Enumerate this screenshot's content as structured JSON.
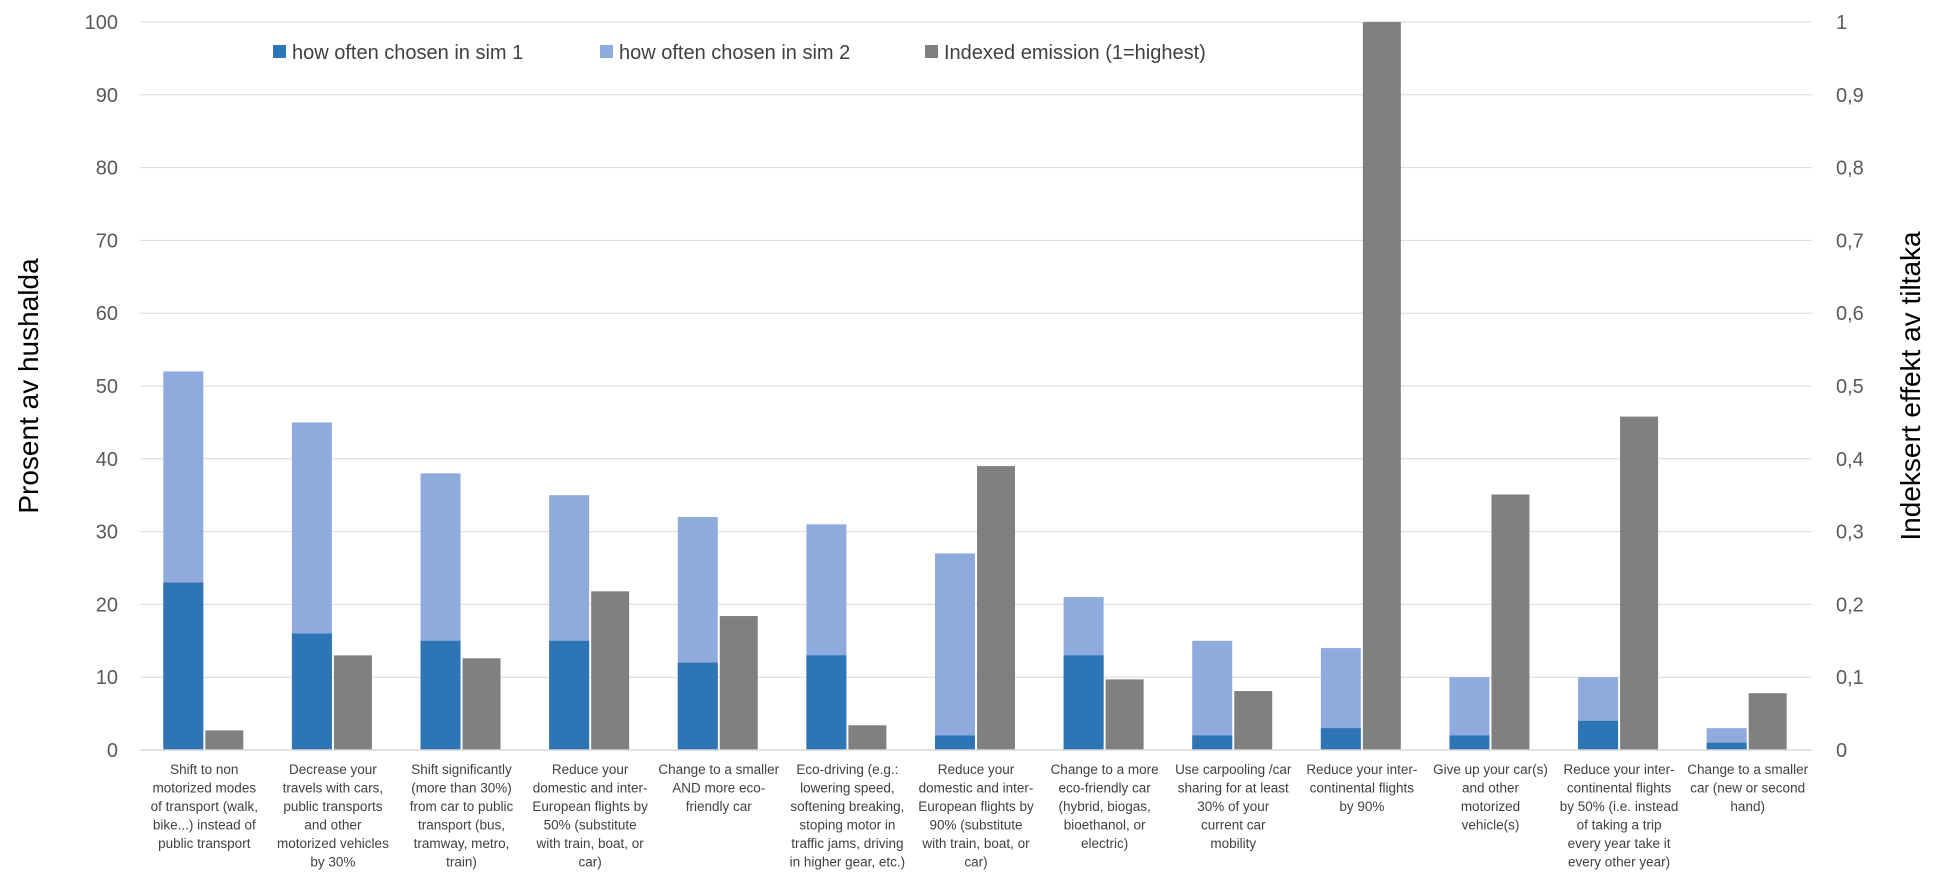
{
  "chart_data": {
    "type": "bar",
    "title": "",
    "ylabel": "Prosent av hushalda",
    "y2label": "Indeksert effekt av tiltaka",
    "ylim": [
      0,
      100
    ],
    "yticks": [
      "0",
      "10",
      "20",
      "30",
      "40",
      "50",
      "60",
      "70",
      "80",
      "90",
      "100"
    ],
    "y2lim": [
      0,
      1
    ],
    "y2ticks": [
      "0",
      "0,1",
      "0,2",
      "0,3",
      "0,4",
      "0,5",
      "0,6",
      "0,7",
      "0,8",
      "0,9",
      "1"
    ],
    "grid": true,
    "legend_position": "top-left",
    "categories": [
      [
        "Shift to non",
        "motorized modes",
        "of transport (walk,",
        "bike...) instead of",
        "public transport"
      ],
      [
        "Decrease your",
        "travels with cars,",
        "public transports",
        "and other",
        "motorized vehicles",
        "by 30%"
      ],
      [
        "Shift significantly",
        "(more than 30%)",
        "from car to public",
        "transport (bus,",
        "tramway, metro,",
        "train)"
      ],
      [
        "Reduce your",
        "domestic and inter-",
        "European flights by",
        "50% (substitute",
        "with train, boat, or",
        "car)"
      ],
      [
        "Change to a smaller",
        "AND more eco-",
        "friendly car"
      ],
      [
        "Eco-driving (e.g.:",
        "lowering speed,",
        "softening breaking,",
        "stoping motor in",
        "traffic jams, driving",
        "in higher gear, etc.)"
      ],
      [
        "Reduce your",
        "domestic and inter-",
        "European flights by",
        "90% (substitute",
        "with train, boat, or",
        "car)"
      ],
      [
        "Change to a more",
        "eco-friendly car",
        "(hybrid, biogas,",
        "bioethanol, or",
        "electric)"
      ],
      [
        "Use carpooling /car",
        "sharing for at least",
        "30% of your",
        "current  car",
        "mobility"
      ],
      [
        "Reduce your inter-",
        "continental flights",
        "by 90%"
      ],
      [
        "Give up your car(s)",
        "and other",
        "motorized",
        "vehicle(s)"
      ],
      [
        "Reduce your inter-",
        "continental flights",
        "by 50% (i.e. instead",
        "of taking a trip",
        "every year take it",
        "every other year)"
      ],
      [
        "Change to a smaller",
        "car (new or second",
        "hand)"
      ]
    ],
    "series": [
      {
        "name": "how often chosen in sim 1",
        "color": "#2e75b6",
        "axis": "left",
        "values": [
          23,
          16,
          15,
          15,
          12,
          13,
          2,
          13,
          2,
          3,
          2,
          4,
          1
        ]
      },
      {
        "name": "how often chosen in sim 2",
        "color": "#8faadc",
        "axis": "left",
        "values": [
          52,
          45,
          38,
          35,
          32,
          31,
          27,
          21,
          15,
          14,
          10,
          10,
          3
        ]
      },
      {
        "name": "Indexed emission (1=highest)",
        "color": "#808080",
        "axis": "right",
        "values": [
          0.027,
          0.13,
          0.126,
          0.218,
          0.184,
          0.034,
          0.39,
          0.097,
          0.081,
          1.0,
          0.351,
          0.458,
          0.078
        ]
      }
    ]
  }
}
